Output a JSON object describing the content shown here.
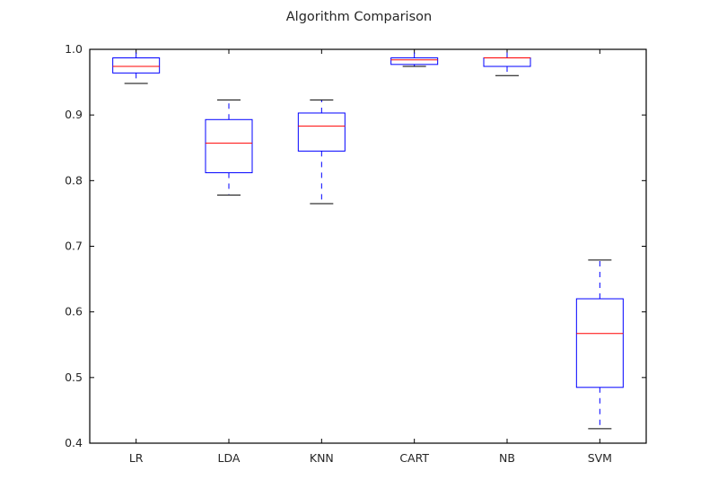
{
  "chart_data": {
    "type": "box",
    "title": "Algorithm Comparison",
    "xlabel": "",
    "ylabel": "",
    "categories": [
      "LR",
      "LDA",
      "KNN",
      "CART",
      "NB",
      "SVM"
    ],
    "ylim": [
      0.4,
      1.0
    ],
    "yticks": [
      0.4,
      0.5,
      0.6,
      0.7,
      0.8,
      0.9,
      1.0
    ],
    "ytick_labels": [
      "0.4",
      "0.5",
      "0.6",
      "0.7",
      "0.8",
      "0.9",
      "1.0"
    ],
    "grid": false,
    "series": [
      {
        "whisker_low": 0.948,
        "q1": 0.964,
        "median": 0.974,
        "q3": 0.987,
        "whisker_high": 1.0
      },
      {
        "whisker_low": 0.778,
        "q1": 0.812,
        "median": 0.857,
        "q3": 0.893,
        "whisker_high": 0.923
      },
      {
        "whisker_low": 0.765,
        "q1": 0.845,
        "median": 0.883,
        "q3": 0.903,
        "whisker_high": 0.923
      },
      {
        "whisker_low": 0.974,
        "q1": 0.977,
        "median": 0.984,
        "q3": 0.987,
        "whisker_high": 1.0
      },
      {
        "whisker_low": 0.96,
        "q1": 0.974,
        "median": 0.987,
        "q3": 0.987,
        "whisker_high": 1.0
      },
      {
        "whisker_low": 0.422,
        "q1": 0.485,
        "median": 0.567,
        "q3": 0.62,
        "whisker_high": 0.679
      }
    ],
    "colors": {
      "box": "#0000ff",
      "median": "#ff0000",
      "cap": "#000000",
      "axis": "#000000",
      "text": "#262626"
    }
  }
}
